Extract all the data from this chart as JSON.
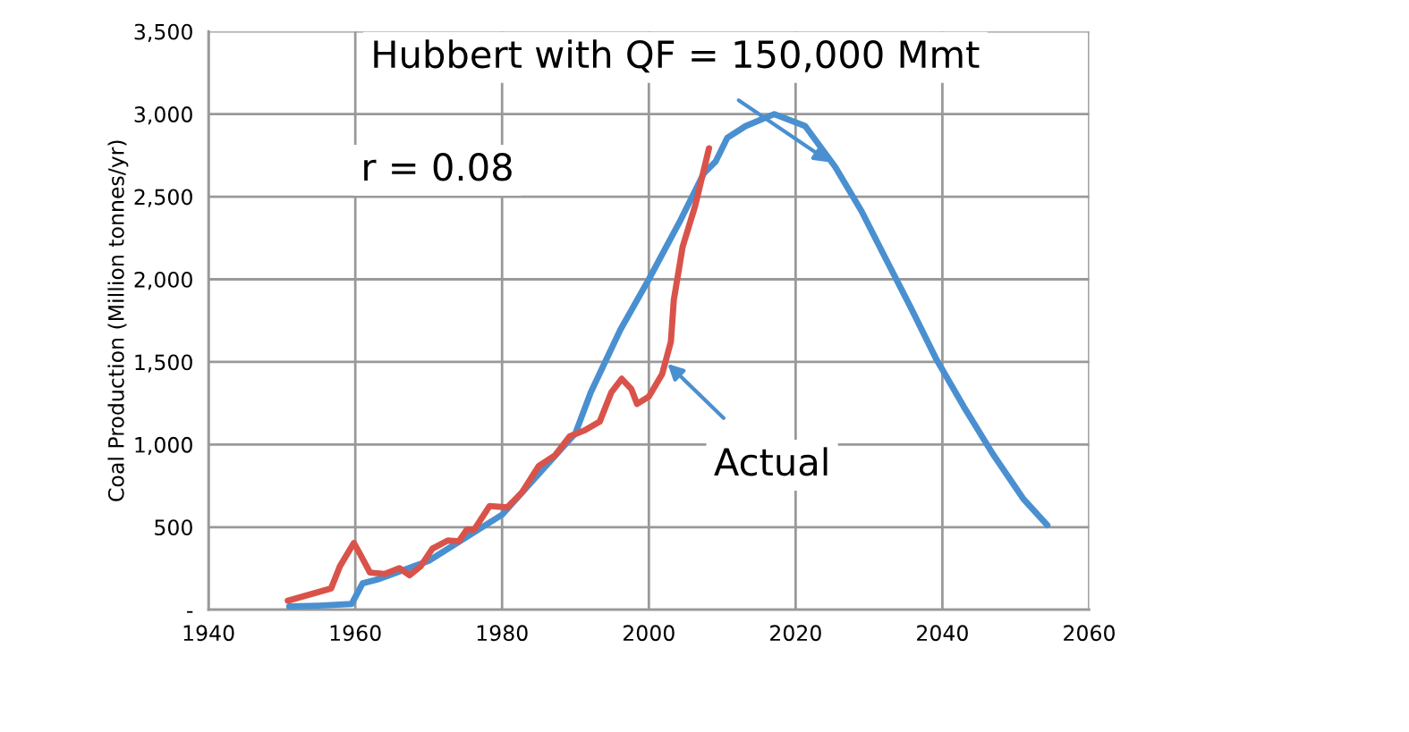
{
  "chart_data": {
    "type": "line",
    "ylabel": "Coal Production (Million tonnes/yr)",
    "xlim": [
      1940,
      2060
    ],
    "xticks": [
      1940,
      1960,
      1980,
      2000,
      2020,
      2040,
      2060
    ],
    "ylim": [
      0,
      3500
    ],
    "yticks": [
      {
        "value": 0,
        "label": "-"
      },
      500,
      {
        "value": 1000,
        "label": "1,000"
      },
      {
        "value": 1500,
        "label": "1,500"
      },
      {
        "value": 2000,
        "label": "2,000"
      },
      {
        "value": 2500,
        "label": "2,500"
      },
      {
        "value": 3000,
        "label": "3,000"
      },
      {
        "value": 3500,
        "label": "3,500"
      }
    ],
    "grid": true,
    "legend": false,
    "marker": "none",
    "line_style": "solid",
    "series": [
      {
        "color": "#4a90d0",
        "x": [
          1951,
          1955,
          1959.5,
          1961,
          1963,
          1970,
          1980,
          1990,
          1992.1,
          1996.1,
          2000,
          2004.3,
          2007.5,
          2009.1,
          2010.7,
          2013.2,
          2017.1,
          2021.3,
          2025.4,
          2029,
          2032.3,
          2035.6,
          2039.2,
          2042.9,
          2046.9,
          2051,
          2054.3
        ],
        "values": [
          20,
          25,
          35,
          160,
          183,
          296,
          575,
          1069,
          1317,
          1693,
          2000,
          2357,
          2642,
          2713,
          2857,
          2928,
          3000,
          2928,
          2680,
          2411,
          2123,
          1837,
          1514,
          1230,
          941,
          673,
          512
        ]
      },
      {
        "color": "#d9534a",
        "x": [
          1950.8,
          1956.7,
          1957.9,
          1959.8,
          1960.7,
          1962,
          1964,
          1966,
          1967.4,
          1968.9,
          1970.5,
          1972.6,
          1974.1,
          1975.2,
          1976.2,
          1978.3,
          1980.7,
          1982.7,
          1985,
          1987.2,
          1989.2,
          1991.2,
          1993.3,
          1994.9,
          1996.3,
          1997.6,
          1998.4,
          2000,
          2001.8,
          2003,
          2003.4,
          2004.6,
          2006.3,
          2008.2
        ],
        "values": [
          55,
          129,
          263,
          404,
          333,
          225,
          217,
          252,
          209,
          263,
          370,
          419,
          414,
          485,
          485,
          628,
          619,
          709,
          870,
          934,
          1049,
          1085,
          1138,
          1317,
          1398,
          1337,
          1246,
          1290,
          1425,
          1622,
          1874,
          2196,
          2443,
          2793
        ]
      }
    ],
    "annotations": [
      {
        "text": "Hubbert with QF = 150,000 Mmt",
        "x": 2025,
        "y": 2700
      },
      "r = 0.08",
      {
        "text": "Actual",
        "x": 2002.3,
        "y": 1500
      }
    ]
  }
}
